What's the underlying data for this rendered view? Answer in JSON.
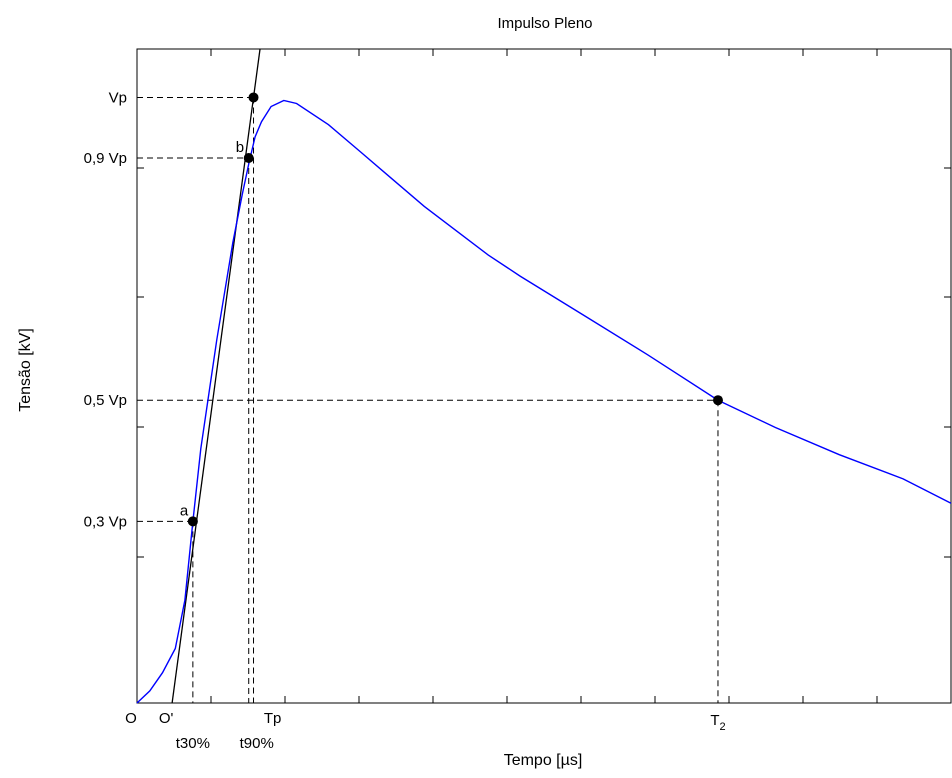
{
  "chart_data": {
    "type": "line",
    "title": "Impulso Pleno",
    "xlabel": "Tempo [µs]",
    "ylabel": "Tensão [kV]",
    "y_tick_labels": [
      "0,3 Vp",
      "0,5 Vp",
      "0,9 Vp",
      "Vp"
    ],
    "x_tick_labels": [
      "O",
      "O'",
      "t30%",
      "t90%",
      "Tp",
      "T2"
    ],
    "x_tick_values": [
      0,
      1.1,
      1.75,
      3.5,
      3.85,
      18.2
    ],
    "y_tick_values": [
      0.3,
      0.5,
      0.9,
      1.0
    ],
    "series": [
      {
        "color": "#0000ff",
        "x": [
          0,
          0.4,
          0.8,
          1.2,
          1.5,
          1.75,
          2.0,
          2.5,
          3.0,
          3.3,
          3.5,
          3.7,
          3.9,
          4.2,
          4.6,
          5.0,
          6,
          7,
          8,
          9,
          10,
          11,
          12,
          14,
          16,
          18.2,
          20,
          22,
          24,
          25.5
        ],
        "y": [
          0,
          0.02,
          0.05,
          0.09,
          0.17,
          0.3,
          0.42,
          0.6,
          0.76,
          0.84,
          0.89,
          0.935,
          0.96,
          0.985,
          0.995,
          0.99,
          0.955,
          0.91,
          0.865,
          0.82,
          0.78,
          0.74,
          0.705,
          0.64,
          0.575,
          0.5,
          0.455,
          0.41,
          0.37,
          0.33
        ]
      }
    ],
    "front_line": {
      "x": [
        1.1,
        3.65
      ],
      "y": [
        0,
        1.0
      ]
    },
    "points": [
      {
        "label": "a",
        "x": 1.75,
        "y": 0.3
      },
      {
        "label": "b",
        "x": 3.5,
        "y": 0.9
      },
      {
        "label": "",
        "x": 3.65,
        "y": 1.0
      },
      {
        "label": "",
        "x": 18.2,
        "y": 0.5
      }
    ],
    "xlim": [
      0,
      25.5
    ],
    "ylim": [
      0,
      1.08
    ],
    "grid": false
  }
}
